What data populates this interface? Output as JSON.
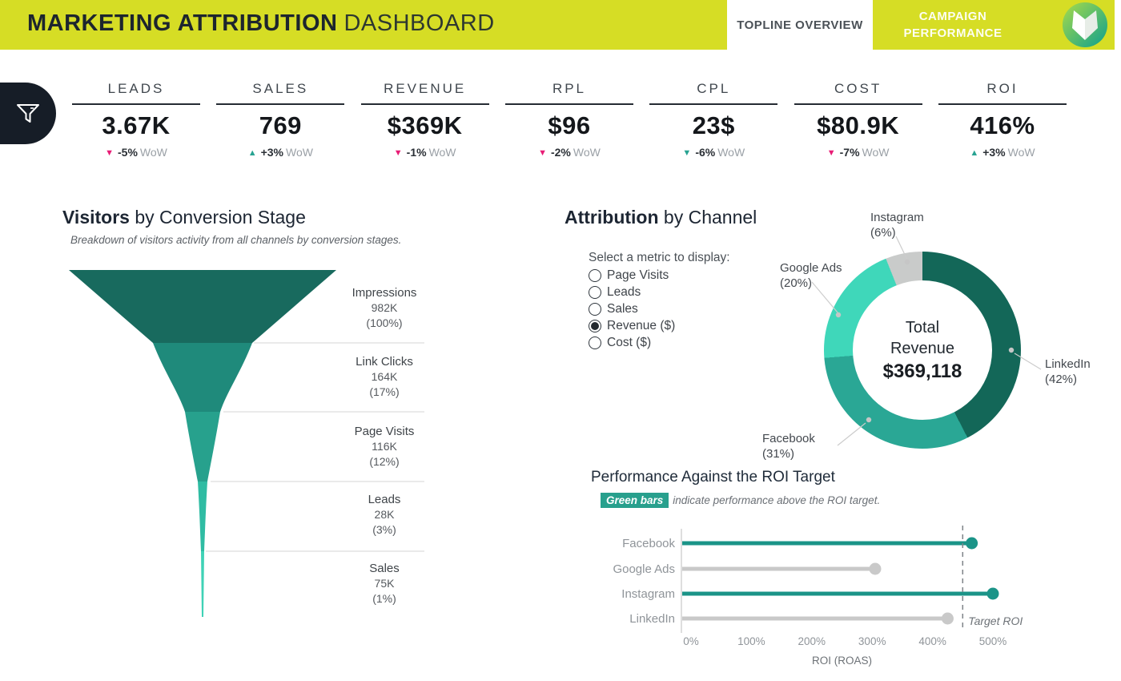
{
  "header": {
    "bg_color": "#d6dd25",
    "title_bold": "MARKETING ATTRIBUTION",
    "title_light": "DASHBOARD",
    "tabs": [
      {
        "label": "TOPLINE OVERVIEW",
        "active": true
      },
      {
        "label": "CAMPAIGN PERFORMANCE",
        "active": false
      }
    ]
  },
  "kpis": [
    {
      "label": "LEADS",
      "value": "3.67K",
      "arrow": "▼",
      "change": "-5%",
      "wow": "WoW",
      "change_color": "#e81d76"
    },
    {
      "label": "SALES",
      "value": "769",
      "arrow": "▲",
      "change": "+3%",
      "wow": "WoW",
      "change_color": "#28a392"
    },
    {
      "label": "REVENUE",
      "value": "$369K",
      "arrow": "▼",
      "change": "-1%",
      "wow": "WoW",
      "change_color": "#e81d76"
    },
    {
      "label": "RPL",
      "value": "$96",
      "arrow": "▼",
      "change": "-2%",
      "wow": "WoW",
      "change_color": "#e81d76"
    },
    {
      "label": "CPL",
      "value": "23$",
      "arrow": "▼",
      "change": "-6%",
      "wow": "WoW",
      "change_color": "#28a392"
    },
    {
      "label": "COST",
      "value": "$80.9K",
      "arrow": "▼",
      "change": "-7%",
      "wow": "WoW",
      "change_color": "#e81d76"
    },
    {
      "label": "ROI",
      "value": "416%",
      "arrow": "▲",
      "change": "+3%",
      "wow": "WoW",
      "change_color": "#28a392"
    }
  ],
  "funnel_section": {
    "title_bold": "Visitors",
    "title_rest": " by Conversion Stage",
    "subtitle": "Breakdown of visitors activity from all channels by conversion stages."
  },
  "attribution_section": {
    "title_bold": "Attribution",
    "title_rest": " by Channel",
    "prompt": "Select a metric to display:",
    "options": [
      {
        "label": "Page Visits",
        "selected": false
      },
      {
        "label": "Leads",
        "selected": false
      },
      {
        "label": "Sales",
        "selected": false
      },
      {
        "label": "Revenue ($)",
        "selected": true
      },
      {
        "label": "Cost ($)",
        "selected": false
      }
    ]
  },
  "roi_section": {
    "title": "Performance Against the ROI Target",
    "chip": "Green bars",
    "chip_color": "#28a08d",
    "subtitle_rest": "indicate performance above the ROI target."
  },
  "chart_data": [
    {
      "type": "funnel",
      "title": "Visitors by Conversion Stage",
      "stages": [
        {
          "label": "Impressions",
          "value": "982K",
          "pct_label": "(100%)",
          "share": 100,
          "color": "#186a5e"
        },
        {
          "label": "Link Clicks",
          "value": "164K",
          "pct_label": "(17%)",
          "share": 17,
          "color": "#1f8a7b"
        },
        {
          "label": "Page Visits",
          "value": "116K",
          "pct_label": "(12%)",
          "share": 12,
          "color": "#27a18d"
        },
        {
          "label": "Leads",
          "value": "28K",
          "pct_label": "(3%)",
          "share": 3,
          "color": "#2fbca3"
        },
        {
          "label": "Sales",
          "value": "75K",
          "pct_label": "(1%)",
          "share": 1,
          "color": "#3fd2b6"
        }
      ]
    },
    {
      "type": "pie",
      "title": "Attribution by Channel",
      "center_label": [
        "Total",
        "Revenue"
      ],
      "center_value": "$369,118",
      "legend_position": "callout-labels",
      "slices": [
        {
          "label": "LinkedIn",
          "pct": 42,
          "pct_label": "(42%)",
          "color": "#136758"
        },
        {
          "label": "Facebook",
          "pct": 31,
          "pct_label": "(31%)",
          "color": "#2aa795"
        },
        {
          "label": "Google Ads",
          "pct": 20,
          "pct_label": "(20%)",
          "color": "#3fd7ba"
        },
        {
          "label": "Instagram",
          "pct": 6,
          "pct_label": "(6%)",
          "color": "#c9cbca"
        }
      ]
    },
    {
      "type": "bar",
      "title": "Performance Against the ROI Target",
      "categories": [
        "Facebook",
        "Google Ads",
        "Instagram",
        "LinkedIn"
      ],
      "values": [
        465,
        305,
        500,
        425
      ],
      "above_target": [
        true,
        false,
        true,
        false
      ],
      "target": 450,
      "target_label": "Target ROI",
      "ticks": [
        "0%",
        "100%",
        "200%",
        "300%",
        "400%",
        "500%"
      ],
      "xlabel": "ROI (ROAS)",
      "xlim": [
        0,
        500
      ],
      "colors": {
        "above": "#1b9488",
        "below": "#c9c9c9"
      }
    }
  ]
}
